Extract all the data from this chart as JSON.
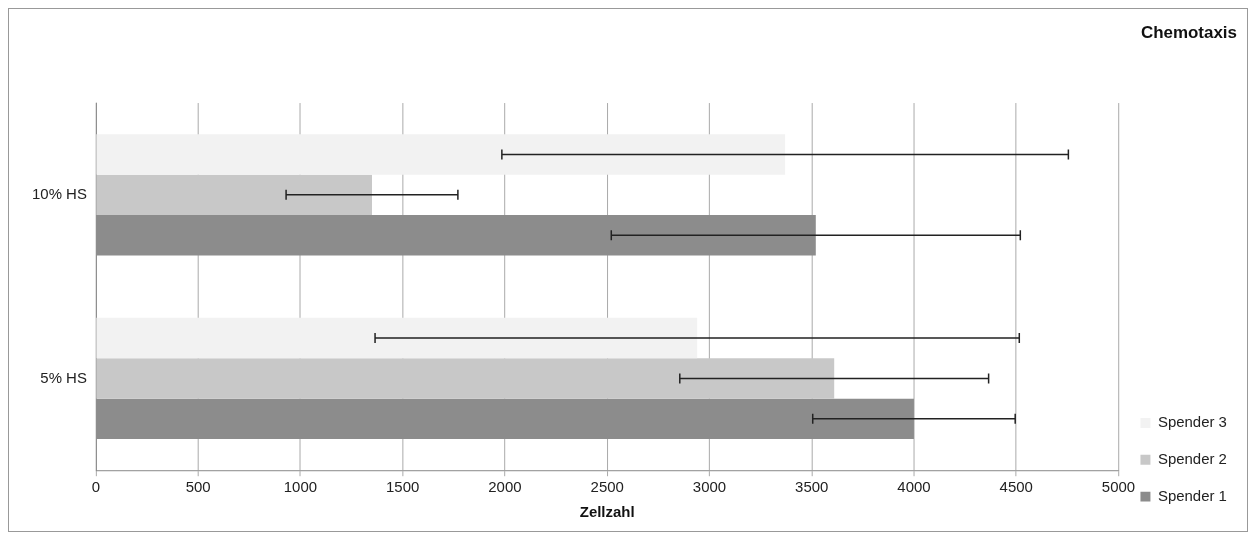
{
  "chart_data": {
    "type": "bar",
    "orientation": "horizontal",
    "title": "Chemotaxis",
    "xlabel": "Zellzahl",
    "categories": [
      "10% HS",
      "5% HS"
    ],
    "series": [
      {
        "name": "Spender 3",
        "color": "#f2f2f2",
        "values": [
          3370,
          2940
        ],
        "errors": [
          1385,
          1575
        ]
      },
      {
        "name": "Spender 2",
        "color": "#c8c8c8",
        "values": [
          1350,
          3610
        ],
        "errors": [
          420,
          755
        ]
      },
      {
        "name": "Spender 1",
        "color": "#8c8c8c",
        "values": [
          3520,
          4000
        ],
        "errors": [
          1000,
          495
        ]
      }
    ],
    "xlim": [
      0,
      5000
    ],
    "xticks": [
      0,
      500,
      1000,
      1500,
      2000,
      2500,
      3000,
      3500,
      4000,
      4500,
      5000
    ],
    "grid": "x",
    "legend": "bottom right"
  }
}
